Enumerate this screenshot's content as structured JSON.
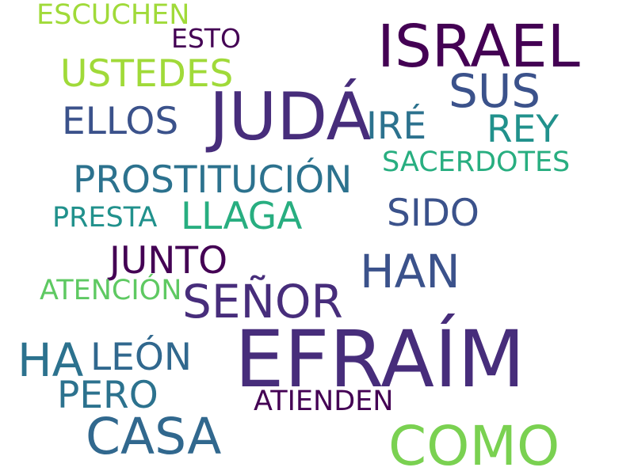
{
  "words": [
    {
      "text": "ESCUCHEN",
      "color": "#a0da39"
    },
    {
      "text": "ESTO",
      "color": "#440154"
    },
    {
      "text": "ISRAEL",
      "color": "#440154"
    },
    {
      "text": "USTEDES",
      "color": "#a0da39"
    },
    {
      "text": "SUS",
      "color": "#3b528b"
    },
    {
      "text": "JUDÁ",
      "color": "#472d7b"
    },
    {
      "text": "ELLOS",
      "color": "#3b528b"
    },
    {
      "text": "IRÉ",
      "color": "#2c728e"
    },
    {
      "text": "REY",
      "color": "#21918c"
    },
    {
      "text": "SACERDOTES",
      "color": "#28ae80"
    },
    {
      "text": "PROSTITUCIÓN",
      "color": "#2c728e"
    },
    {
      "text": "SIDO",
      "color": "#3b528b"
    },
    {
      "text": "PRESTA",
      "color": "#21918c"
    },
    {
      "text": "LLAGA",
      "color": "#28ae80"
    },
    {
      "text": "JUNTO",
      "color": "#440154"
    },
    {
      "text": "HAN",
      "color": "#3b528b"
    },
    {
      "text": "ATENCIÓN",
      "color": "#5ec962"
    },
    {
      "text": "SEÑOR",
      "color": "#472d7b"
    },
    {
      "text": "EFRAÍM",
      "color": "#472d7b"
    },
    {
      "text": "HA",
      "color": "#2c728e"
    },
    {
      "text": "LEÓN",
      "color": "#31688e"
    },
    {
      "text": "PERO",
      "color": "#2c728e"
    },
    {
      "text": "ATIENDEN",
      "color": "#440154"
    },
    {
      "text": "CASA",
      "color": "#31688e"
    },
    {
      "text": "COMO",
      "color": "#7ad151"
    }
  ]
}
